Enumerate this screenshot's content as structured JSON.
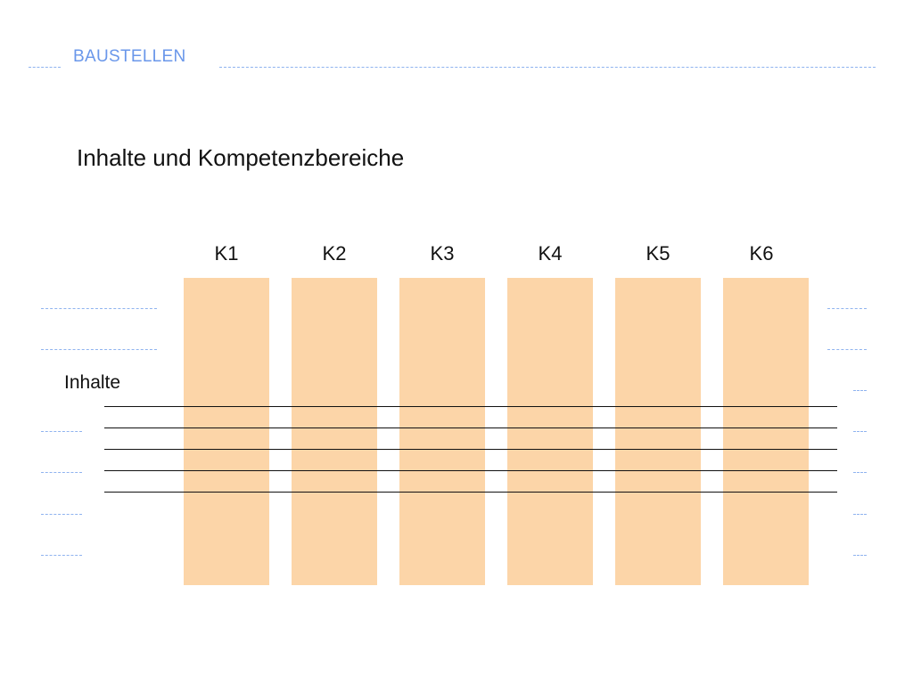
{
  "header": {
    "title": "BAUSTELLEN"
  },
  "slide": {
    "title": "Inhalte und Kompetenzbereiche"
  },
  "diagram": {
    "columns": [
      "K1",
      "K2",
      "K3",
      "K4",
      "K5",
      "K6"
    ],
    "row_label": "Inhalte",
    "row_count": 5
  },
  "colors": {
    "column": "#fcd5a8",
    "accent": "#6a97ea"
  }
}
